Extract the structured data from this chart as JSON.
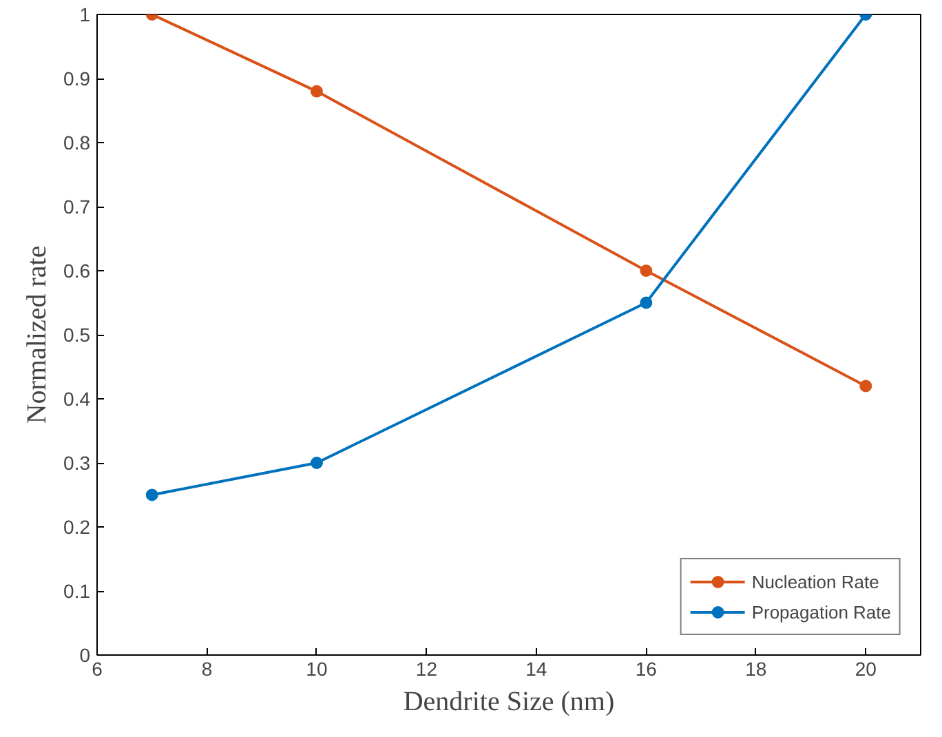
{
  "chart_data": {
    "type": "line",
    "xlabel": "Dendrite Size (nm)",
    "ylabel": "Normalized rate",
    "x": [
      7,
      10,
      16,
      20
    ],
    "series": [
      {
        "name": "Nucleation Rate",
        "color": "#d95319",
        "values": [
          1,
          0.88,
          0.6,
          0.42
        ]
      },
      {
        "name": "Propagation Rate",
        "color": "#0072bd",
        "values": [
          0.25,
          0.3,
          0.55,
          1
        ]
      }
    ],
    "xlim": [
      6,
      21
    ],
    "xticks": [
      6,
      8,
      10,
      12,
      14,
      16,
      18,
      20
    ],
    "ylim": [
      0,
      1
    ],
    "yticks": [
      0,
      0.1,
      0.2,
      0.3,
      0.4,
      0.5,
      0.6,
      0.7,
      0.8,
      0.9,
      1
    ],
    "grid": false,
    "legend": "bottom right",
    "marker": "circle",
    "line_style": "solid"
  }
}
